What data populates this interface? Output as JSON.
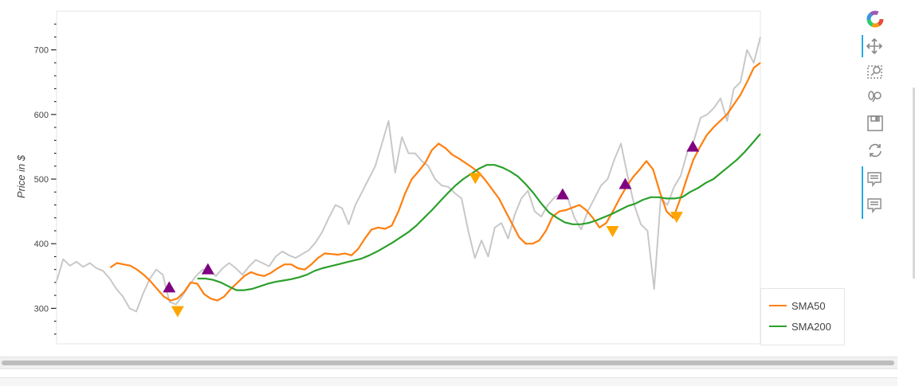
{
  "toolbar": {
    "tools": [
      {
        "name": "bokeh-logo-icon",
        "active": false
      },
      {
        "name": "pan-icon",
        "active": true
      },
      {
        "name": "box-zoom-icon",
        "active": false
      },
      {
        "name": "wheel-zoom-icon",
        "active": false
      },
      {
        "name": "save-icon",
        "active": false
      },
      {
        "name": "reset-icon",
        "active": false
      },
      {
        "name": "hover-icon",
        "active": true
      },
      {
        "name": "hover-icon-2",
        "active": true
      }
    ]
  },
  "legend": {
    "sma50": "SMA50",
    "sma200": "SMA200"
  },
  "colors": {
    "price": "#c8c8c8",
    "sma50": "#ff7f0e",
    "sma200": "#2ca02c",
    "buy": "#800080",
    "sell": "#ffa500"
  },
  "chart_data": {
    "type": "line",
    "title": "",
    "xlabel": "",
    "ylabel": "Price in $",
    "ylim": [
      245,
      760
    ],
    "yticks": [
      300,
      400,
      500,
      600,
      700
    ],
    "grid": false,
    "legend_position": "bottom-right, outside plot",
    "series": [
      {
        "name": "",
        "role": "price",
        "values": [
          342,
          376,
          366,
          372,
          364,
          370,
          362,
          358,
          346,
          330,
          318,
          300,
          295,
          322,
          345,
          360,
          352,
          310,
          306,
          320,
          336,
          350,
          360,
          358,
          350,
          362,
          370,
          362,
          352,
          365,
          375,
          370,
          365,
          380,
          388,
          382,
          378,
          384,
          390,
          402,
          418,
          440,
          460,
          455,
          430,
          460,
          480,
          500,
          520,
          555,
          590,
          510,
          565,
          540,
          540,
          528,
          520,
          500,
          490,
          488,
          478,
          470,
          420,
          378,
          405,
          380,
          425,
          432,
          408,
          445,
          470,
          482,
          450,
          442,
          460,
          472,
          478,
          470,
          440,
          422,
          450,
          470,
          490,
          500,
          530,
          555,
          505,
          460,
          430,
          420,
          330,
          470,
          460,
          488,
          505,
          542,
          560,
          595,
          600,
          610,
          625,
          590,
          640,
          650,
          700,
          680,
          720
        ]
      },
      {
        "name": "SMA50",
        "values": [
          null,
          null,
          null,
          null,
          null,
          null,
          null,
          null,
          363,
          370,
          368,
          366,
          360,
          352,
          342,
          330,
          318,
          312,
          315,
          325,
          340,
          338,
          322,
          315,
          312,
          318,
          330,
          340,
          350,
          356,
          352,
          350,
          355,
          362,
          368,
          368,
          362,
          360,
          368,
          378,
          385,
          384,
          383,
          385,
          382,
          392,
          408,
          422,
          425,
          423,
          428,
          450,
          478,
          500,
          512,
          525,
          545,
          555,
          548,
          538,
          532,
          525,
          518,
          510,
          498,
          484,
          470,
          450,
          430,
          410,
          400,
          400,
          405,
          420,
          442,
          450,
          452,
          456,
          460,
          452,
          440,
          425,
          432,
          450,
          470,
          488,
          503,
          515,
          528,
          515,
          480,
          450,
          440,
          468,
          500,
          530,
          550,
          568,
          580,
          590,
          600,
          615,
          630,
          650,
          672,
          680
        ]
      },
      {
        "name": "SMA200",
        "values": [
          null,
          null,
          null,
          null,
          null,
          null,
          null,
          null,
          null,
          null,
          null,
          null,
          null,
          null,
          null,
          null,
          null,
          null,
          346,
          346,
          344,
          340,
          334,
          328,
          328,
          330,
          334,
          338,
          341,
          343,
          345,
          348,
          352,
          358,
          362,
          365,
          368,
          371,
          374,
          377,
          382,
          388,
          395,
          402,
          410,
          418,
          428,
          440,
          452,
          465,
          478,
          490,
          500,
          508,
          516,
          522,
          522,
          518,
          512,
          504,
          492,
          478,
          462,
          448,
          440,
          433,
          430,
          430,
          432,
          436,
          441,
          446,
          452,
          458,
          462,
          468,
          472,
          472,
          470,
          470,
          472,
          480,
          486,
          494,
          500,
          510,
          520,
          530,
          542,
          556,
          570
        ]
      }
    ],
    "buy_signals": [
      {
        "x": 0.16,
        "y": 332
      },
      {
        "x": 0.215,
        "y": 360
      },
      {
        "x": 0.719,
        "y": 476
      },
      {
        "x": 0.808,
        "y": 492
      },
      {
        "x": 0.904,
        "y": 550
      }
    ],
    "sell_signals": [
      {
        "x": 0.172,
        "y": 296
      },
      {
        "x": 0.595,
        "y": 502
      },
      {
        "x": 0.79,
        "y": 420
      },
      {
        "x": 0.881,
        "y": 442
      }
    ]
  }
}
